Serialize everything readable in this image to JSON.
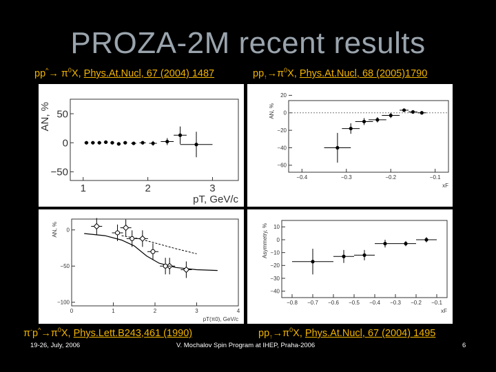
{
  "slide": {
    "title": "PROZA-2M recent results",
    "footer_left": "19-26, July, 2006",
    "footer_center": "V. Mochalov Spin Program at IHEP, Praha-2006",
    "footer_right": "6"
  },
  "captions": {
    "top_left_prefix": "pp",
    "top_left_sup": "^",
    "top_left_mid": "→ π",
    "top_left_sup2": "0",
    "top_left_x": "X, ",
    "top_left_ref": "Phys.At.Nucl, 67 (2004) 1487",
    "top_right_prefix": "pp",
    "top_right_sub": "↑",
    "top_right_mid": "→π",
    "top_right_sup2": "0",
    "top_right_x": "X, ",
    "top_right_ref": "Phys.At.Nucl, 68 (2005)1790",
    "bottom_left_prefix": "π",
    "bottom_left_sup": "-",
    "bottom_left_p": "p",
    "bottom_left_sup2": "^",
    "bottom_left_mid": "→π",
    "bottom_left_sup3": "0",
    "bottom_left_x": "X, ",
    "bottom_left_ref": "Phys.Lett.B243,461 (1990)",
    "bottom_right_prefix": "pp",
    "bottom_right_sub": "↑",
    "bottom_right_mid": "→π",
    "bottom_right_sup2": "0",
    "bottom_right_x": "X, ",
    "bottom_right_ref": "Phys.At.Nucl, 67 (2004) 1495"
  },
  "chart_data": [
    {
      "type": "scatter",
      "title": "",
      "xlabel": "pT, GeV/c",
      "ylabel": "AN, %",
      "xlim": [
        0.8,
        3.4
      ],
      "ylim": [
        -65,
        75
      ],
      "xticks": [
        "1",
        "2",
        "3"
      ],
      "yticks": [
        "50",
        "0",
        "−50"
      ],
      "points": [
        {
          "x": 1.05,
          "y": 0,
          "xerr": 0.03,
          "yerr": 1.5
        },
        {
          "x": 1.15,
          "y": 0,
          "xerr": 0.03,
          "yerr": 1.5
        },
        {
          "x": 1.25,
          "y": 0,
          "xerr": 0.03,
          "yerr": 1.5
        },
        {
          "x": 1.35,
          "y": 1,
          "xerr": 0.03,
          "yerr": 1.5
        },
        {
          "x": 1.45,
          "y": 0,
          "xerr": 0.03,
          "yerr": 1.5
        },
        {
          "x": 1.55,
          "y": -2,
          "xerr": 0.03,
          "yerr": 2
        },
        {
          "x": 1.65,
          "y": 0,
          "xerr": 0.03,
          "yerr": 2
        },
        {
          "x": 1.78,
          "y": -1,
          "xerr": 0.04,
          "yerr": 2
        },
        {
          "x": 1.92,
          "y": 0,
          "xerr": 0.05,
          "yerr": 3
        },
        {
          "x": 2.08,
          "y": -1,
          "xerr": 0.06,
          "yerr": 4
        },
        {
          "x": 2.3,
          "y": 2,
          "xerr": 0.1,
          "yerr": 6
        },
        {
          "x": 2.5,
          "y": 13,
          "xerr": 0.1,
          "yerr": 15
        },
        {
          "x": 2.75,
          "y": -3,
          "xerr": 0.25,
          "yerr": 22
        }
      ]
    },
    {
      "type": "scatter",
      "title": "",
      "xlabel": "xF",
      "ylabel": "AN, %",
      "xlim": [
        -0.43,
        -0.07
      ],
      "ylim": [
        -68,
        14
      ],
      "xticks": [
        "−0.4",
        "−0.3",
        "−0.2",
        "−0.1"
      ],
      "yticks": [
        "20",
        "0",
        "−20",
        "−40",
        "−60"
      ],
      "points": [
        {
          "x": -0.32,
          "y": -40,
          "xerr": 0.03,
          "yerr": 17
        },
        {
          "x": -0.29,
          "y": -18,
          "xerr": 0.02,
          "yerr": 6
        },
        {
          "x": -0.26,
          "y": -10,
          "xerr": 0.02,
          "yerr": 4
        },
        {
          "x": -0.23,
          "y": -8,
          "xerr": 0.02,
          "yerr": 3
        },
        {
          "x": -0.2,
          "y": -3,
          "xerr": 0.02,
          "yerr": 3
        },
        {
          "x": -0.17,
          "y": 3,
          "xerr": 0.01,
          "yerr": 2
        },
        {
          "x": -0.15,
          "y": 1,
          "xerr": 0.01,
          "yerr": 2
        },
        {
          "x": -0.13,
          "y": 0,
          "xerr": 0.01,
          "yerr": 2
        }
      ]
    },
    {
      "type": "scatter",
      "title": "",
      "xlabel": "pT(π0), GeV/c",
      "ylabel": "AN, %",
      "xlim": [
        0,
        4
      ],
      "ylim": [
        -105,
        15
      ],
      "xticks": [
        "0",
        "1",
        "2",
        "3",
        "4"
      ],
      "yticks": [
        "0",
        "−50",
        "−100"
      ],
      "series": [
        {
          "name": "",
          "marker": "open-diamond",
          "points": [
            {
              "x": 0.6,
              "y": 5
            },
            {
              "x": 1.3,
              "y": 3
            },
            {
              "x": 1.7,
              "y": -12
            },
            {
              "x": 2.35,
              "y": -50
            },
            {
              "x": 2.75,
              "y": -55
            }
          ]
        },
        {
          "name": "",
          "marker": "open-circle",
          "points": [
            {
              "x": 1.1,
              "y": -4
            },
            {
              "x": 1.45,
              "y": -12
            },
            {
              "x": 1.95,
              "y": -30
            },
            {
              "x": 2.25,
              "y": -50
            }
          ]
        }
      ],
      "curves": {
        "solid": [
          [
            0.3,
            -5
          ],
          [
            0.8,
            -8
          ],
          [
            1.2,
            -14
          ],
          [
            1.5,
            -22
          ],
          [
            1.8,
            -36
          ],
          [
            2.1,
            -46
          ],
          [
            2.5,
            -52
          ],
          [
            3.0,
            -55
          ],
          [
            3.5,
            -56
          ]
        ],
        "dashed": [
          [
            1.2,
            -8
          ],
          [
            1.6,
            -12
          ],
          [
            2.0,
            -18
          ],
          [
            2.5,
            -26
          ],
          [
            3.0,
            -33
          ]
        ]
      }
    },
    {
      "type": "scatter",
      "title": "",
      "xlabel": "xF",
      "ylabel": "Asymmetry, %",
      "xlim": [
        -0.85,
        -0.05
      ],
      "ylim": [
        -45,
        15
      ],
      "xticks": [
        "−0.8",
        "−0.7",
        "−0.6",
        "−0.5",
        "−0.4",
        "−0.3",
        "−0.2",
        "−0.1"
      ],
      "yticks": [
        "10",
        "0",
        "−10",
        "−20",
        "−30",
        "−40"
      ],
      "points": [
        {
          "x": -0.7,
          "y": -17,
          "xerr": 0.1,
          "yerr": 10
        },
        {
          "x": -0.55,
          "y": -13,
          "xerr": 0.05,
          "yerr": 5
        },
        {
          "x": -0.45,
          "y": -12,
          "xerr": 0.05,
          "yerr": 4
        },
        {
          "x": -0.35,
          "y": -3,
          "xerr": 0.05,
          "yerr": 3
        },
        {
          "x": -0.25,
          "y": -3,
          "xerr": 0.05,
          "yerr": 2
        },
        {
          "x": -0.15,
          "y": 0,
          "xerr": 0.05,
          "yerr": 2
        }
      ]
    }
  ]
}
